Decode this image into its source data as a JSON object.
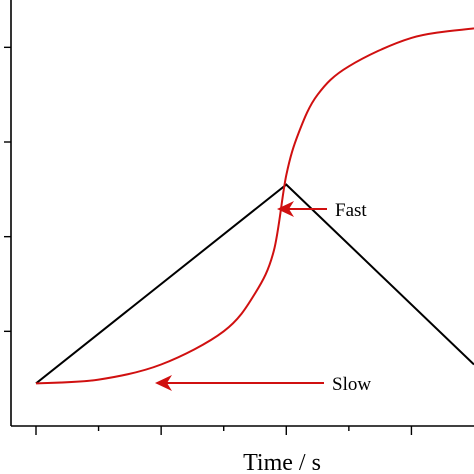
{
  "chart_data": {
    "type": "line",
    "xlabel": "Time / s",
    "ylabel": "",
    "title": "",
    "xlim": [
      0,
      7
    ],
    "ylim": [
      0,
      9
    ],
    "series": [
      {
        "color": "#000000",
        "x": [
          0,
          4,
          7
        ],
        "y": [
          0.9,
          5.1,
          1.3
        ]
      },
      {
        "color": "#d01010",
        "x": [
          0,
          1,
          2,
          3,
          3.5,
          3.8,
          4,
          4.2,
          4.5,
          5,
          6,
          7
        ],
        "y": [
          0.9,
          0.98,
          1.3,
          2.0,
          2.8,
          3.7,
          5.3,
          6.2,
          7.0,
          7.6,
          8.2,
          8.4
        ]
      }
    ],
    "annotations": [
      {
        "text": "Fast",
        "x": 4,
        "y": 5.1
      },
      {
        "text": "Slow",
        "x": 2,
        "y": 1.3
      }
    ],
    "grid": false
  },
  "colors": {
    "axis": "#000000",
    "red": "#d01010"
  }
}
